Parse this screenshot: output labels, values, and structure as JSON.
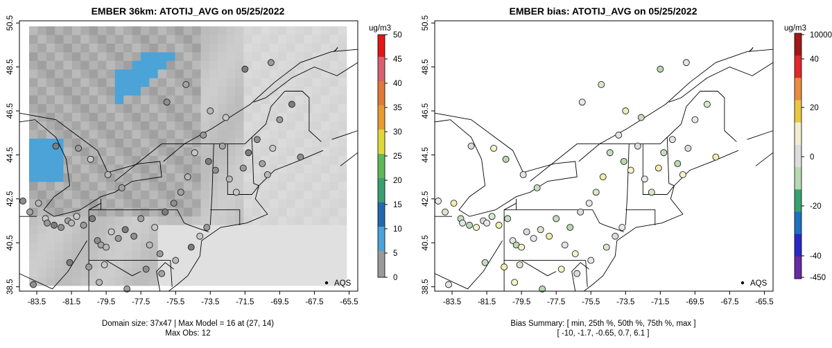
{
  "date": "05/25/2022",
  "left_panel": {
    "title": "EMBER 36km: ATOTIJ_AVG on 05/25/2022",
    "units": "ug/m3",
    "colorbar_ticks": [
      "0",
      "5",
      "10",
      "15",
      "20",
      "25",
      "30",
      "35",
      "40",
      "45",
      "50"
    ],
    "colorbar_range": [
      0,
      50
    ],
    "legend_label": "AQS",
    "footer_line1": "Domain size: 37x47 | Max Model = 16 at (27, 14)",
    "footer_line2": "Max Obs: 12"
  },
  "right_panel": {
    "title": "EMBER bias: ATOTIJ_AVG on 05/25/2022",
    "units": "ug/m3",
    "colorbar_ticks": [
      "10000",
      "40",
      "20",
      "0",
      "-20",
      "-40",
      "-450"
    ],
    "legend_label": "AQS",
    "footer_line1": "Bias Summary: [ min, 25th %, 50th %, 75th %, max ]",
    "footer_line2": "[ -10,   -1.7,   -0.65,   0.7,   6.1 ]"
  },
  "x_ticks": [
    "-83.5",
    "-81.5",
    "-79.5",
    "-77.5",
    "-75.5",
    "-73.5",
    "-71.5",
    "-69.5",
    "-67.5",
    "-65.5"
  ],
  "y_ticks": [
    "38.5",
    "40.5",
    "42.5",
    "44.5",
    "46.5",
    "48.5",
    "50.5"
  ],
  "lon_range": [
    -84.5,
    -65.0
  ],
  "lat_range": [
    38.3,
    50.6
  ],
  "colors": {
    "model_gray": "#d6d6d6",
    "model_dark": "#a9a9a9",
    "model_blue": "#4ba3d8",
    "land": "#ffffff",
    "border": "#000000"
  },
  "chart_data": [
    {
      "type": "map-heatmap",
      "title": "EMBER 36km: ATOTIJ_AVG on 05/25/2022",
      "units": "ug/m3",
      "xlim": [
        -84.5,
        -65.0
      ],
      "ylim": [
        38.3,
        50.6
      ],
      "colorbar": [
        0,
        50
      ],
      "max_model": 16,
      "max_model_cell": [
        27,
        14
      ],
      "max_obs": 12,
      "domain": "37x47",
      "stations": [
        [
          -84.3,
          42.4
        ],
        [
          -83.9,
          41.9
        ],
        [
          -83.4,
          42.3
        ],
        [
          -83.0,
          41.6
        ],
        [
          -82.9,
          41.4
        ],
        [
          -82.5,
          41.3
        ],
        [
          -82.1,
          41.2
        ],
        [
          -81.7,
          41.5
        ],
        [
          -81.5,
          41.4
        ],
        [
          -81.2,
          41.7
        ],
        [
          -80.8,
          41.3
        ],
        [
          -80.3,
          41.6
        ],
        [
          -80.0,
          40.6
        ],
        [
          -79.8,
          40.4
        ],
        [
          -79.5,
          40.3
        ],
        [
          -79.2,
          41.0
        ],
        [
          -78.8,
          40.7
        ],
        [
          -78.4,
          41.1
        ],
        [
          -77.9,
          40.8
        ],
        [
          -77.5,
          41.6
        ],
        [
          -77.0,
          40.4
        ],
        [
          -76.7,
          41.2
        ],
        [
          -76.4,
          40.0
        ],
        [
          -76.1,
          41.9
        ],
        [
          -75.6,
          42.3
        ],
        [
          -75.2,
          42.8
        ],
        [
          -74.8,
          43.5
        ],
        [
          -74.4,
          44.6
        ],
        [
          -73.9,
          45.4
        ],
        [
          -73.6,
          44.2
        ],
        [
          -73.2,
          43.8
        ],
        [
          -72.8,
          44.9
        ],
        [
          -72.4,
          43.4
        ],
        [
          -72.0,
          42.8
        ],
        [
          -71.6,
          43.9
        ],
        [
          -71.3,
          44.6
        ],
        [
          -70.8,
          45.2
        ],
        [
          -70.5,
          44.1
        ],
        [
          -70.2,
          43.6
        ],
        [
          -69.9,
          44.8
        ],
        [
          -69.5,
          46.1
        ],
        [
          -68.8,
          46.8
        ],
        [
          -68.3,
          44.4
        ],
        [
          -78.6,
          43.0
        ],
        [
          -79.4,
          43.6
        ],
        [
          -80.4,
          44.3
        ],
        [
          -81.1,
          44.8
        ],
        [
          -82.4,
          44.9
        ],
        [
          -76.0,
          46.9
        ],
        [
          -74.9,
          47.7
        ],
        [
          -73.5,
          46.5
        ],
        [
          -72.6,
          46.2
        ],
        [
          -70.0,
          48.7
        ],
        [
          -71.5,
          48.4
        ],
        [
          -77.2,
          39.3
        ],
        [
          -76.3,
          39.1
        ],
        [
          -75.5,
          39.7
        ],
        [
          -79.6,
          39.5
        ],
        [
          -80.5,
          39.4
        ],
        [
          -81.6,
          39.6
        ],
        [
          -83.7,
          38.6
        ],
        [
          -78.3,
          38.4
        ],
        [
          -79.9,
          38.7
        ],
        [
          -74.1,
          40.8
        ],
        [
          -73.7,
          41.2
        ],
        [
          -74.6,
          40.3
        ]
      ]
    },
    {
      "type": "map-scatter",
      "title": "EMBER bias: ATOTIJ_AVG on 05/25/2022",
      "units": "ug/m3",
      "xlim": [
        -84.5,
        -65.0
      ],
      "ylim": [
        38.3,
        50.6
      ],
      "bias_summary": {
        "min": -10,
        "p25": -1.7,
        "p50": -0.65,
        "p75": 0.7,
        "max": 6.1
      },
      "colorbar_labels": [
        "10000",
        "40",
        "20",
        "0",
        "-20",
        "-40",
        "-450"
      ]
    }
  ]
}
